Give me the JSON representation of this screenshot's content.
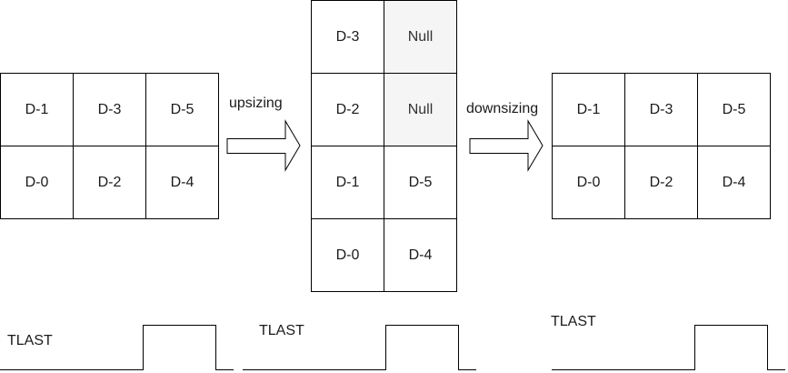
{
  "colors": {
    "stroke": "#000000",
    "text": "#1a1a1a",
    "null_fill": "#f5f5f5",
    "background": "#ffffff"
  },
  "left_grid": {
    "top_row": [
      "D-1",
      "D-3",
      "D-5"
    ],
    "bottom_row": [
      "D-0",
      "D-2",
      "D-4"
    ]
  },
  "arrow_left": {
    "label": "upsizing"
  },
  "middle_grid": {
    "rows": [
      [
        "D-3",
        "Null"
      ],
      [
        "D-2",
        "Null"
      ],
      [
        "D-1",
        "D-5"
      ],
      [
        "D-0",
        "D-4"
      ]
    ]
  },
  "arrow_right": {
    "label": "downsizing"
  },
  "right_grid": {
    "top_row": [
      "D-1",
      "D-3",
      "D-5"
    ],
    "bottom_row": [
      "D-0",
      "D-2",
      "D-4"
    ]
  },
  "signals": {
    "left": {
      "label": "TLAST"
    },
    "middle": {
      "label": "TLAST"
    },
    "right": {
      "label": "TLAST"
    }
  }
}
